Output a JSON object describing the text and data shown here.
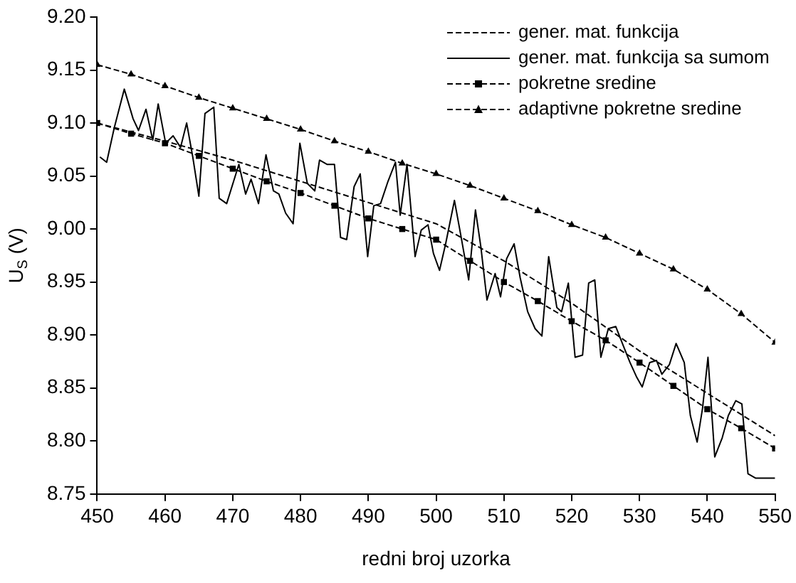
{
  "chart_data": {
    "type": "line",
    "xlabel": "redni broj uzorka",
    "ylabel": "U$_{S}$ (V)",
    "xlim": [
      450,
      550
    ],
    "xticks": [
      450,
      460,
      470,
      480,
      490,
      500,
      510,
      520,
      530,
      540,
      550
    ],
    "ylim": [
      8.75,
      9.2
    ],
    "yticks": [
      {
        "value": 8.75,
        "label": "8.75"
      },
      {
        "value": 8.8,
        "label": "8.80"
      },
      {
        "value": 8.85,
        "label": "8.85"
      },
      {
        "value": 8.9,
        "label": "8.90"
      },
      {
        "value": 8.95,
        "label": "8.95"
      },
      {
        "value": 9.0,
        "label": "9.00"
      },
      {
        "value": 9.05,
        "label": "9.05"
      },
      {
        "value": 9.1,
        "label": "9.10"
      },
      {
        "value": 9.15,
        "label": "9.15"
      },
      {
        "value": 9.2,
        "label": "9.20"
      }
    ],
    "grid": false,
    "legend": "top right",
    "series": [
      {
        "name": "gener. mat. funkcija",
        "color": "#000000",
        "line_style": "dashed",
        "marker": "none",
        "x": [
          450,
          460,
          470,
          480,
          490,
          500,
          510,
          520,
          530,
          540,
          550
        ],
        "values": [
          9.1,
          9.083,
          9.065,
          9.045,
          9.025,
          9.005,
          8.97,
          8.93,
          8.885,
          8.845,
          8.805
        ]
      },
      {
        "name": "gener. mat. funkcija sa sumom",
        "color": "#000000",
        "line_style": "solid",
        "marker": "none",
        "x": [
          450.4,
          451.4,
          452.5,
          454.0,
          455.3,
          456.1,
          457.2,
          458.2,
          459.0,
          460.1,
          461.2,
          462.3,
          463.2,
          464.1,
          465.0,
          465.9,
          467.2,
          468.0,
          469.1,
          470.9,
          471.9,
          472.7,
          473.8,
          474.9,
          476.0,
          476.8,
          477.8,
          478.9,
          479.9,
          481.0,
          482.1,
          482.8,
          483.9,
          485.0,
          485.9,
          486.8,
          487.9,
          488.8,
          489.9,
          490.8,
          491.8,
          492.9,
          494.0,
          494.7,
          495.7,
          496.9,
          497.8,
          498.8,
          499.6,
          500.5,
          501.4,
          502.7,
          503.7,
          504.8,
          505.8,
          506.6,
          507.5,
          508.7,
          509.5,
          510.4,
          511.5,
          512.4,
          513.5,
          514.6,
          515.6,
          516.6,
          517.8,
          518.5,
          519.5,
          520.5,
          521.6,
          522.5,
          523.4,
          524.3,
          525.4,
          526.5,
          527.6,
          528.6,
          529.6,
          530.4,
          531.5,
          532.5,
          533.3,
          534.4,
          535.4,
          536.6,
          537.5,
          538.5,
          539.3,
          540.1,
          541.1,
          542.2,
          543.1,
          544.2,
          545.1,
          546.0,
          547.1,
          550.0
        ],
        "values": [
          9.068,
          9.063,
          9.095,
          9.132,
          9.104,
          9.093,
          9.113,
          9.084,
          9.118,
          9.081,
          9.088,
          9.077,
          9.1,
          9.068,
          9.031,
          9.109,
          9.115,
          9.029,
          9.024,
          9.061,
          9.033,
          9.047,
          9.024,
          9.07,
          9.036,
          9.033,
          9.015,
          9.005,
          9.081,
          9.043,
          9.036,
          9.065,
          9.061,
          9.061,
          8.992,
          8.99,
          9.04,
          9.052,
          8.974,
          9.022,
          9.024,
          9.045,
          9.063,
          9.013,
          9.061,
          8.974,
          8.999,
          9.004,
          8.977,
          8.961,
          8.986,
          9.027,
          8.992,
          8.952,
          9.018,
          8.983,
          8.933,
          8.958,
          8.936,
          8.972,
          8.986,
          8.954,
          8.922,
          8.906,
          8.899,
          8.974,
          8.926,
          8.922,
          8.949,
          8.879,
          8.881,
          8.949,
          8.952,
          8.879,
          8.906,
          8.908,
          8.89,
          8.874,
          8.86,
          8.851,
          8.874,
          8.876,
          8.863,
          8.872,
          8.892,
          8.874,
          8.824,
          8.799,
          8.831,
          8.879,
          8.785,
          8.803,
          8.824,
          8.838,
          8.835,
          8.769,
          8.765,
          8.765
        ]
      },
      {
        "name": "pokretne sredine",
        "color": "#000000",
        "line_style": "dashed",
        "marker": "square",
        "x": [
          450,
          455,
          460,
          465,
          470,
          475,
          480,
          485,
          490,
          495,
          500,
          505,
          510,
          515,
          520,
          525,
          530,
          535,
          540,
          545,
          550
        ],
        "values": [
          9.1,
          9.09,
          9.081,
          9.069,
          9.057,
          9.045,
          9.034,
          9.022,
          9.01,
          9.0,
          8.99,
          8.97,
          8.95,
          8.932,
          8.913,
          8.895,
          8.874,
          8.852,
          8.83,
          8.812,
          8.793
        ]
      },
      {
        "name": "adaptivne pokretne sredine",
        "color": "#000000",
        "line_style": "dashed",
        "marker": "triangle",
        "x": [
          450,
          455,
          460,
          465,
          470,
          475,
          480,
          485,
          490,
          495,
          500,
          505,
          510,
          515,
          520,
          525,
          530,
          535,
          540,
          545,
          550
        ],
        "values": [
          9.155,
          9.146,
          9.135,
          9.124,
          9.114,
          9.104,
          9.094,
          9.083,
          9.073,
          9.062,
          9.052,
          9.041,
          9.029,
          9.017,
          9.004,
          8.992,
          8.977,
          8.962,
          8.943,
          8.92,
          8.893
        ]
      }
    ]
  }
}
